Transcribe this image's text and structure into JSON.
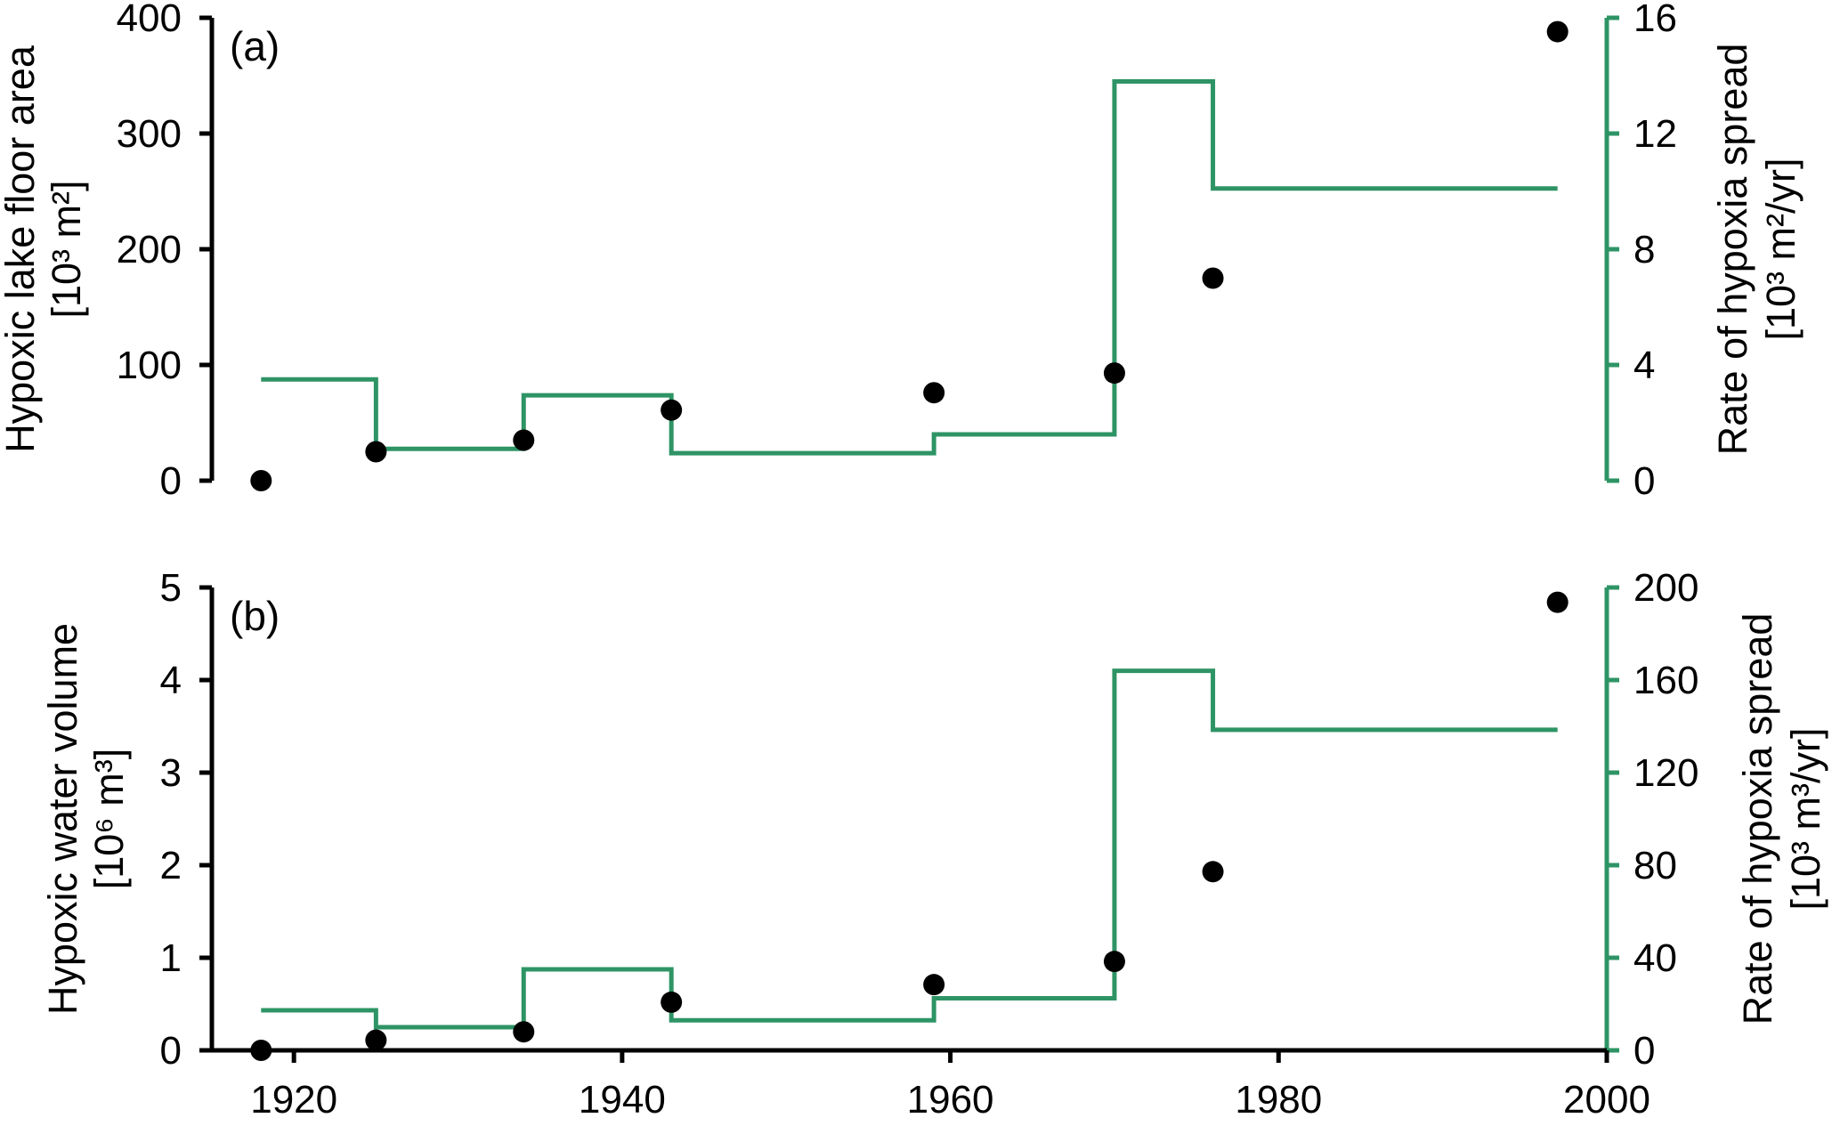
{
  "chart_data": [
    {
      "panel_label": "(a)",
      "type": "scatter+step",
      "ylabel_left": [
        "Hypoxic lake floor area",
        "[10³ m²]"
      ],
      "ylabel_right": [
        "Rate of hypoxia spread",
        "[10³ m²/yr]"
      ],
      "y_left_ticks": [
        "0",
        "100",
        "200",
        "300",
        "400"
      ],
      "y_right_ticks": [
        "0",
        "4",
        "8",
        "12",
        "16"
      ],
      "ylim_left": [
        0,
        400
      ],
      "ylim_right": [
        0,
        16
      ],
      "scatter": {
        "x": [
          1918,
          1925,
          1934,
          1943,
          1959,
          1970,
          1976,
          1997
        ],
        "y": [
          0,
          25,
          35,
          61,
          76,
          93,
          175,
          388
        ]
      },
      "step": {
        "x": [
          1918,
          1925,
          1934,
          1943,
          1959,
          1970,
          1976,
          1997
        ],
        "rate": [
          3.5,
          1.1,
          2.95,
          0.95,
          1.6,
          13.8,
          10.1
        ]
      },
      "colors": {
        "points": "#000000",
        "rate_line": "#2e9465"
      }
    },
    {
      "panel_label": "(b)",
      "type": "scatter+step",
      "ylabel_left": [
        "Hypoxic water volume",
        "[10⁶ m³]"
      ],
      "ylabel_right": [
        "Rate of hypoxia spread",
        "[10³ m³/yr]"
      ],
      "y_left_ticks": [
        "0",
        "1",
        "2",
        "3",
        "4",
        "5"
      ],
      "y_right_ticks": [
        "0",
        "40",
        "80",
        "120",
        "160",
        "200"
      ],
      "ylim_left": [
        0,
        5
      ],
      "ylim_right": [
        0,
        200
      ],
      "scatter": {
        "x": [
          1918,
          1925,
          1934,
          1943,
          1959,
          1970,
          1976,
          1997
        ],
        "y": [
          0,
          0.11,
          0.2,
          0.52,
          0.71,
          0.96,
          1.93,
          4.84
        ]
      },
      "step": {
        "x": [
          1918,
          1925,
          1934,
          1943,
          1959,
          1970,
          1976,
          1997
        ],
        "rate": [
          17.3,
          10,
          35,
          13,
          22.5,
          164,
          138.5
        ]
      },
      "colors": {
        "points": "#000000",
        "rate_line": "#2e9465"
      }
    }
  ],
  "x_axis": {
    "ticks": [
      "1920",
      "1940",
      "1960",
      "1980",
      "2000"
    ],
    "xlim": [
      1915,
      2000
    ]
  }
}
